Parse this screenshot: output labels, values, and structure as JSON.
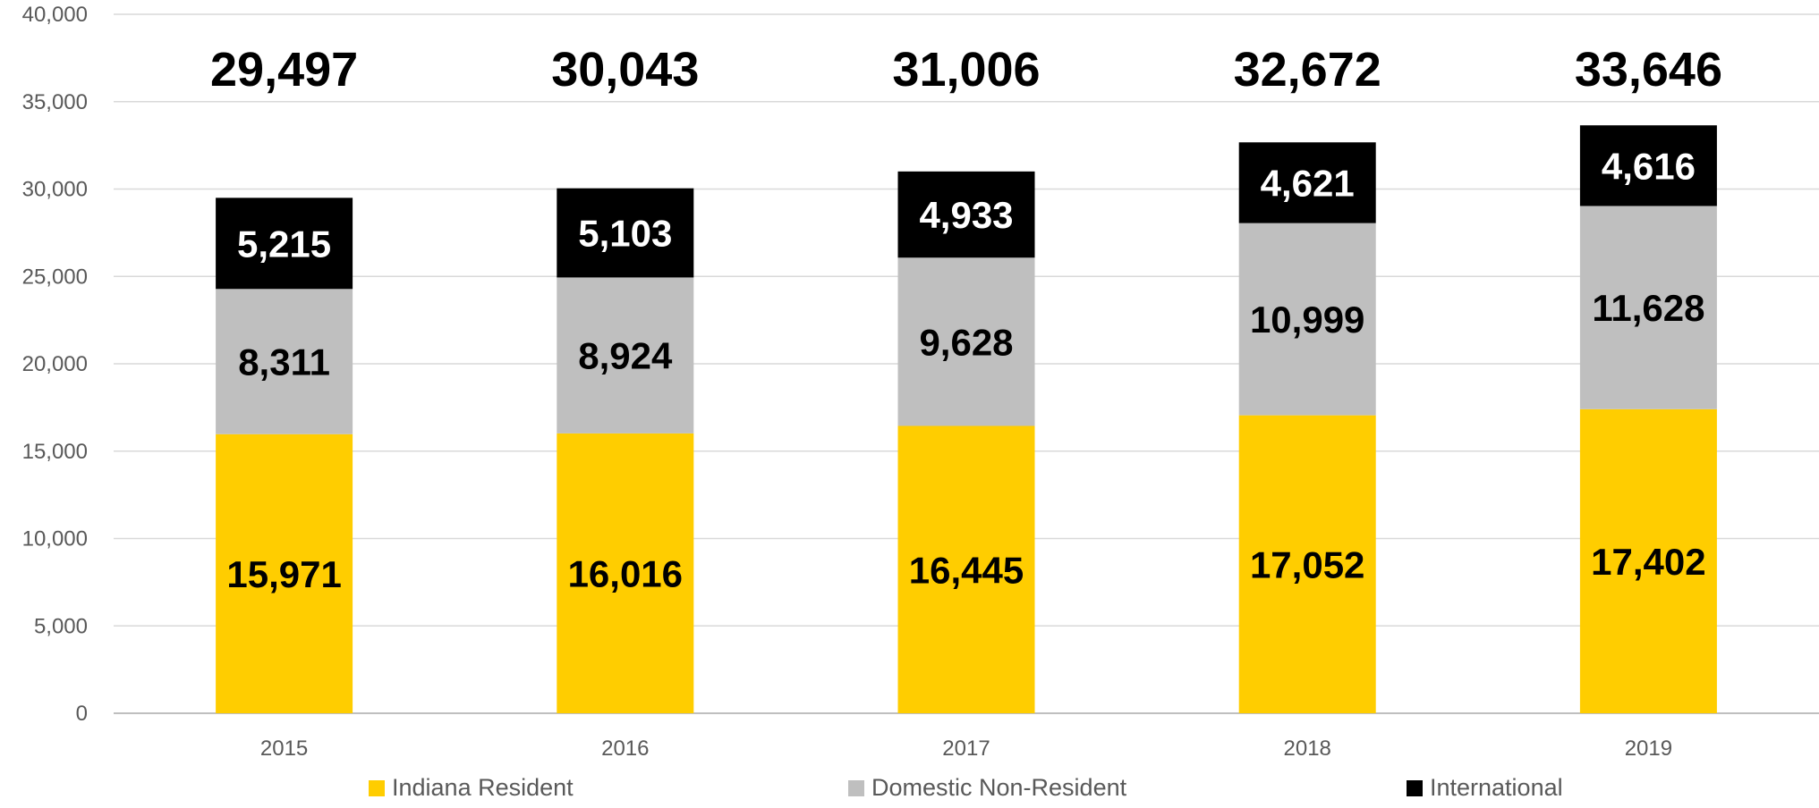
{
  "chart_data": {
    "type": "bar",
    "stacked": true,
    "categories": [
      "2015",
      "2016",
      "2017",
      "2018",
      "2019"
    ],
    "series": [
      {
        "name": "Indiana Resident",
        "color": "#FFCD00",
        "label_color": "#000000",
        "values": [
          15971,
          16016,
          16445,
          17052,
          17402
        ]
      },
      {
        "name": "Domestic Non-Resident",
        "color": "#BFBFBF",
        "label_color": "#000000",
        "values": [
          8311,
          8924,
          9628,
          10999,
          11628
        ]
      },
      {
        "name": "International",
        "color": "#000000",
        "label_color": "#FFFFFF",
        "values": [
          5215,
          5103,
          4933,
          4621,
          4616
        ]
      }
    ],
    "segment_labels": [
      [
        "15,971",
        "16,016",
        "16,445",
        "17,052",
        "17,402"
      ],
      [
        "8,311",
        "8,924",
        "9,628",
        "10,999",
        "11,628"
      ],
      [
        "5,215",
        "5,103",
        "4,933",
        "4,621",
        "4,616"
      ]
    ],
    "totals": [
      29497,
      30043,
      31006,
      32672,
      33646
    ],
    "total_labels": [
      "29,497",
      "30,043",
      "31,006",
      "32,672",
      "33,646"
    ],
    "yticks": [
      "0",
      "5,000",
      "10,000",
      "15,000",
      "20,000",
      "25,000",
      "30,000",
      "35,000",
      "40,000"
    ],
    "ylim": [
      0,
      40000
    ],
    "grid": true,
    "legend_position": "bottom",
    "title": "",
    "xlabel": "",
    "ylabel": ""
  }
}
